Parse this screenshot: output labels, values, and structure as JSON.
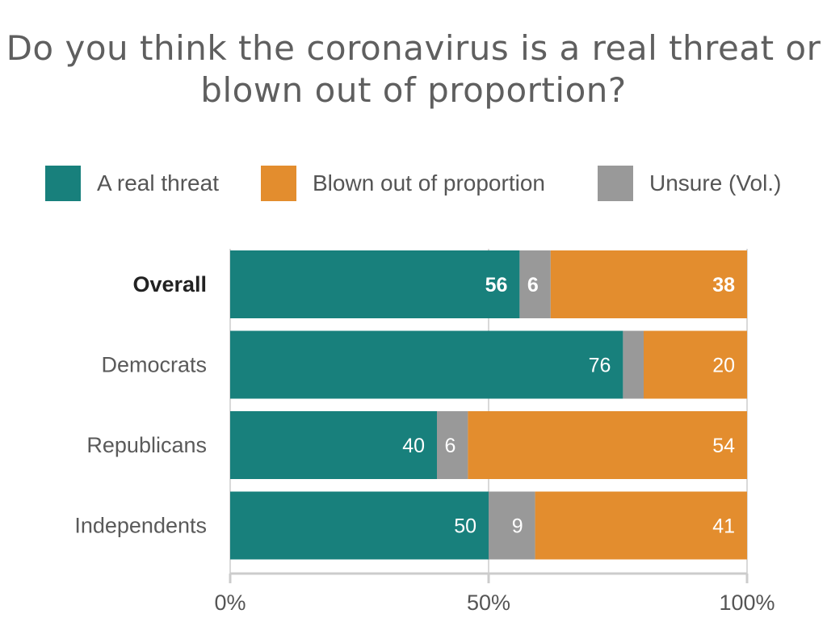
{
  "chart_data": {
    "type": "bar",
    "orientation": "horizontal",
    "stacked": true,
    "title": "Do you think the coronavirus is a real threat or blown out of proportion?",
    "categories": [
      "Overall",
      "Democrats",
      "Republicans",
      "Independents"
    ],
    "series": [
      {
        "name": "A real threat",
        "color": "#18807c",
        "values": [
          56,
          76,
          40,
          50
        ],
        "labels": [
          "56",
          "76",
          "40",
          "50"
        ]
      },
      {
        "name": "Unsure (Vol.)",
        "color": "#999999",
        "values": [
          6,
          4,
          6,
          9
        ],
        "labels": [
          "6",
          "",
          "6",
          "9"
        ]
      },
      {
        "name": "Blown out of proportion",
        "color": "#e38d2e",
        "values": [
          38,
          20,
          54,
          41
        ],
        "labels": [
          "38",
          "20",
          "54",
          "41"
        ]
      }
    ],
    "legend": [
      {
        "name": "A real threat",
        "color": "#18807c"
      },
      {
        "name": "Blown out of proportion",
        "color": "#e38d2e"
      },
      {
        "name": "Unsure (Vol.)",
        "color": "#999999"
      }
    ],
    "bold_categories": [
      "Overall"
    ],
    "xlim": [
      0,
      100
    ],
    "xticks": [
      0,
      50,
      100
    ],
    "xtick_labels": [
      "0%",
      "50%",
      "100%"
    ],
    "grid": true,
    "legend_position": "top"
  }
}
